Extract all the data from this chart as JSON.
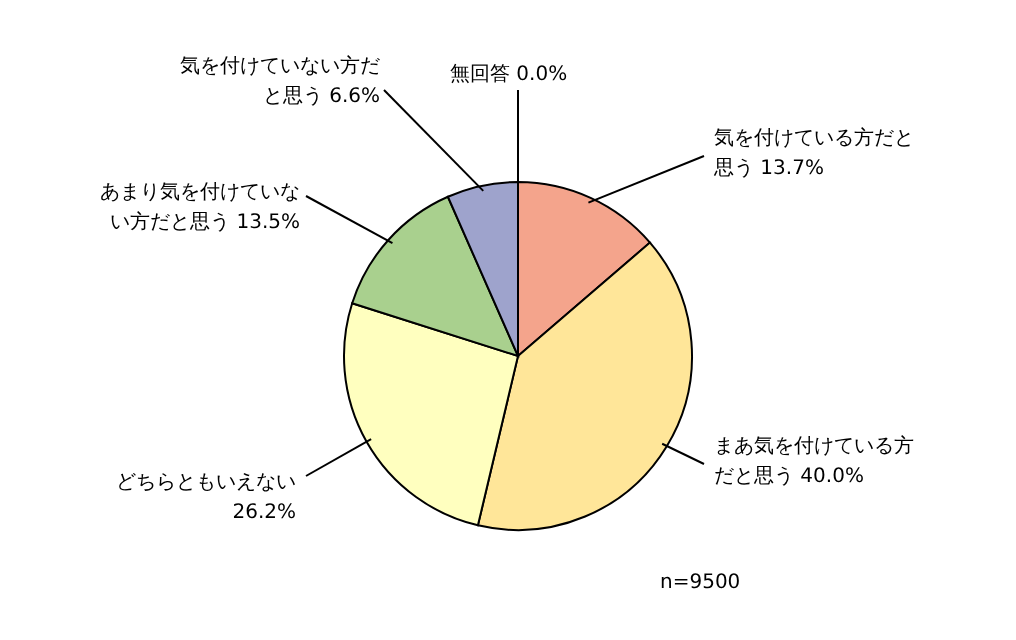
{
  "chart_data": {
    "type": "pie",
    "categories": [
      "無回答",
      "気を付けている方だと思う",
      "まあ気を付けている方だと思う",
      "どちらともいえない",
      "あまり気を付けていない方だと思う",
      "気を付けていない方だと思う"
    ],
    "values": [
      0.0,
      13.7,
      40.0,
      26.2,
      13.5,
      6.6
    ],
    "colors": [
      "#ffffff",
      "#f4a48c",
      "#ffe699",
      "#ffffbf",
      "#a9d08e",
      "#9ea3cc"
    ],
    "value_labels": [
      "0.0%",
      "13.7%",
      "40.0%",
      "26.2%",
      "13.5%",
      "6.6%"
    ],
    "annotations": [
      "n=9500"
    ]
  }
}
